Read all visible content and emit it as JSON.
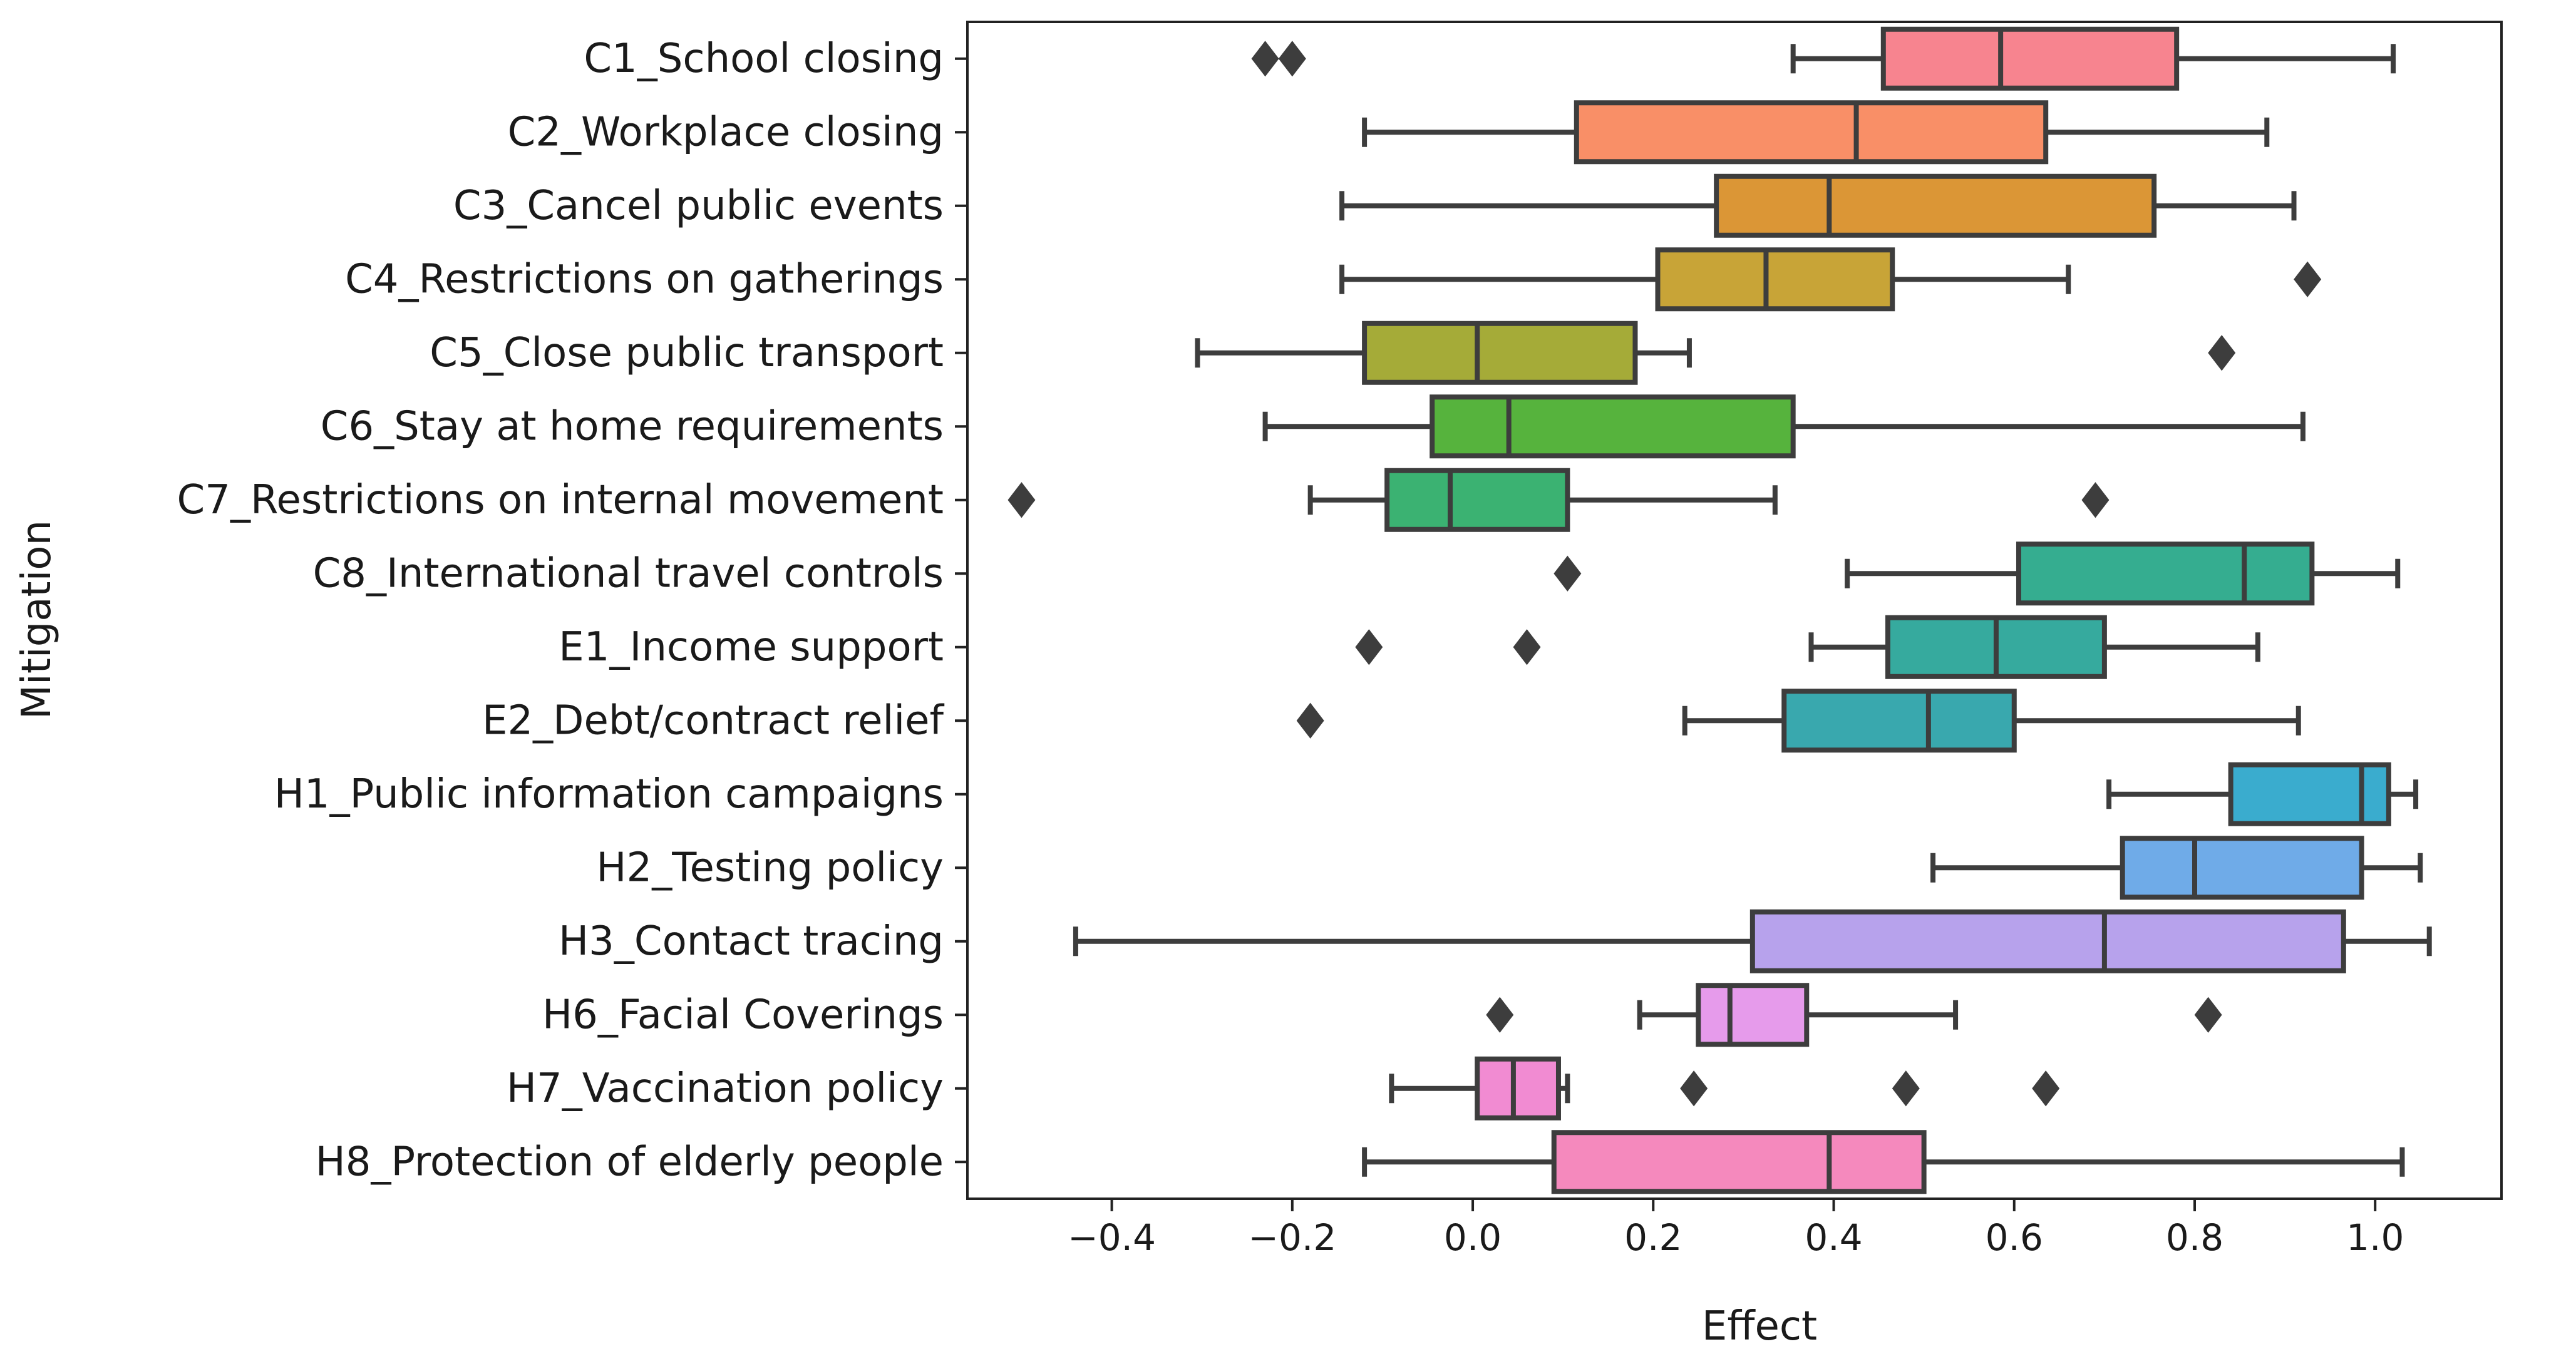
{
  "chart_data": {
    "type": "boxplot",
    "orientation": "horizontal",
    "title": "",
    "xlabel": "Effect",
    "ylabel": "Mitigation",
    "xlim": [
      -0.56,
      1.14
    ],
    "xticks": [
      -0.4,
      -0.2,
      0.0,
      0.2,
      0.4,
      0.6,
      0.8,
      1.0
    ],
    "xtick_labels": [
      "−0.4",
      "−0.2",
      "0.0",
      "0.2",
      "0.4",
      "0.6",
      "0.8",
      "1.0"
    ],
    "grid": false,
    "categories": [
      "C1_School closing",
      "C2_Workplace closing",
      "C3_Cancel public events",
      "C4_Restrictions on gatherings",
      "C5_Close public transport",
      "C6_Stay at home requirements",
      "C7_Restrictions on internal movement",
      "C8_International travel controls",
      "E1_Income support",
      "E2_Debt/contract relief",
      "H1_Public information campaigns",
      "H2_Testing policy",
      "H3_Contact tracing",
      "H6_Facial Coverings",
      "H7_Vaccination policy",
      "H8_Protection of elderly people"
    ],
    "boxes": [
      {
        "whislo": 0.355,
        "q1": 0.455,
        "med": 0.585,
        "q3": 0.78,
        "whishi": 1.02,
        "fliers": [
          -0.23,
          -0.2
        ],
        "color": "#F7848F"
      },
      {
        "whislo": -0.12,
        "q1": 0.115,
        "med": 0.425,
        "q3": 0.635,
        "whishi": 0.88,
        "fliers": [],
        "color": "#F98F67"
      },
      {
        "whislo": -0.145,
        "q1": 0.27,
        "med": 0.395,
        "q3": 0.755,
        "whishi": 0.91,
        "fliers": [],
        "color": "#DB9636"
      },
      {
        "whislo": -0.145,
        "q1": 0.205,
        "med": 0.325,
        "q3": 0.465,
        "whishi": 0.66,
        "fliers": [
          0.925
        ],
        "color": "#C8A437"
      },
      {
        "whislo": -0.305,
        "q1": -0.12,
        "med": 0.005,
        "q3": 0.18,
        "whishi": 0.24,
        "fliers": [
          0.83
        ],
        "color": "#A5AB38"
      },
      {
        "whislo": -0.23,
        "q1": -0.045,
        "med": 0.04,
        "q3": 0.355,
        "whishi": 0.92,
        "fliers": [],
        "color": "#56B33D"
      },
      {
        "whislo": -0.18,
        "q1": -0.095,
        "med": -0.025,
        "q3": 0.105,
        "whishi": 0.335,
        "fliers": [
          -0.5,
          0.69
        ],
        "color": "#3BB272"
      },
      {
        "whislo": 0.415,
        "q1": 0.605,
        "med": 0.855,
        "q3": 0.93,
        "whishi": 1.025,
        "fliers": [
          0.105
        ],
        "color": "#35AD90"
      },
      {
        "whislo": 0.375,
        "q1": 0.46,
        "med": 0.58,
        "q3": 0.7,
        "whishi": 0.87,
        "fliers": [
          -0.115,
          0.06
        ],
        "color": "#36AA9E"
      },
      {
        "whislo": 0.235,
        "q1": 0.345,
        "med": 0.505,
        "q3": 0.6,
        "whishi": 0.915,
        "fliers": [
          -0.18
        ],
        "color": "#39A8AE"
      },
      {
        "whislo": 0.705,
        "q1": 0.84,
        "med": 0.985,
        "q3": 1.015,
        "whishi": 1.045,
        "fliers": [],
        "color": "#3AACCE"
      },
      {
        "whislo": 0.51,
        "q1": 0.72,
        "med": 0.8,
        "q3": 0.985,
        "whishi": 1.05,
        "fliers": [],
        "color": "#6FABE8"
      },
      {
        "whislo": -0.44,
        "q1": 0.31,
        "med": 0.7,
        "q3": 0.965,
        "whishi": 1.06,
        "fliers": [],
        "color": "#B7A2EC"
      },
      {
        "whislo": 0.185,
        "q1": 0.25,
        "med": 0.285,
        "q3": 0.37,
        "whishi": 0.535,
        "fliers": [
          0.03,
          0.815
        ],
        "color": "#E69BEB"
      },
      {
        "whislo": -0.09,
        "q1": 0.005,
        "med": 0.045,
        "q3": 0.095,
        "whishi": 0.105,
        "fliers": [
          0.245,
          0.48,
          0.635
        ],
        "color": "#F18BD2"
      },
      {
        "whislo": -0.12,
        "q1": 0.09,
        "med": 0.395,
        "q3": 0.5,
        "whishi": 1.03,
        "fliers": [],
        "color": "#F589BD"
      }
    ]
  }
}
